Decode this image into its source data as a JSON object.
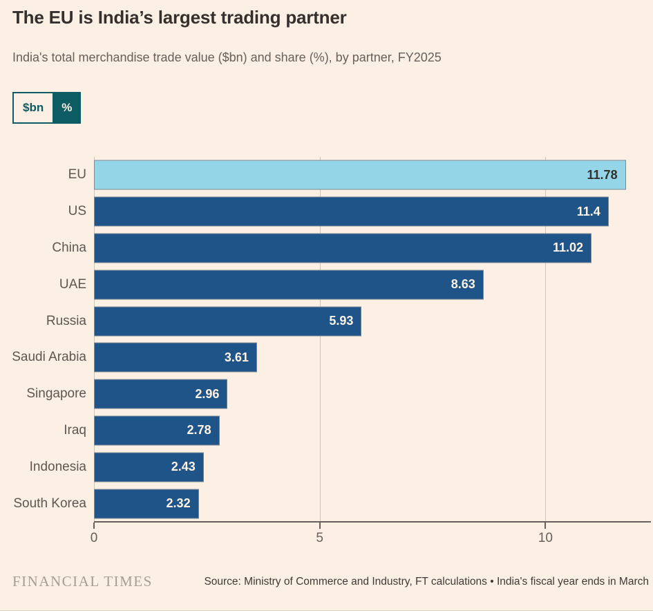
{
  "unit_toggle": {
    "options": [
      {
        "label": "$bn",
        "selected": false
      },
      {
        "label": "%",
        "selected": true
      }
    ]
  },
  "chart_data": {
    "type": "bar",
    "orientation": "horizontal",
    "title": "The EU is India’s largest trading partner",
    "subtitle": "India's total merchandise trade value ($bn) and share (%), by partner, FY2025",
    "categories": [
      "EU",
      "US",
      "China",
      "UAE",
      "Russia",
      "Saudi Arabia",
      "Singapore",
      "Iraq",
      "Indonesia",
      "South Korea"
    ],
    "values": [
      11.78,
      11.4,
      11.02,
      8.63,
      5.93,
      3.61,
      2.96,
      2.78,
      2.43,
      2.32
    ],
    "value_labels": [
      "11.78",
      "11.4",
      "11.02",
      "8.63",
      "5.93",
      "3.61",
      "2.96",
      "2.78",
      "2.43",
      "2.32"
    ],
    "highlight_index": 0,
    "highlighted_category": "EU",
    "xlim": [
      0,
      12
    ],
    "xticks": [
      "0",
      "5",
      "10"
    ],
    "xtick_values": [
      0,
      5,
      10
    ],
    "xlabel": "",
    "ylabel": "",
    "grid": true,
    "legend": "none",
    "bar_color": "#1F5488",
    "highlight_color": "#94D5E8"
  },
  "footer": {
    "brand": "FINANCIAL TIMES",
    "source": "Source: Ministry of Commerce and Industry, FT calculations • India's fiscal year ends in March"
  },
  "colors": {
    "background": "#FCEFE3",
    "accent_teal": "#0D5C63",
    "text_dark": "#33302E",
    "text_muted": "#66605C"
  }
}
